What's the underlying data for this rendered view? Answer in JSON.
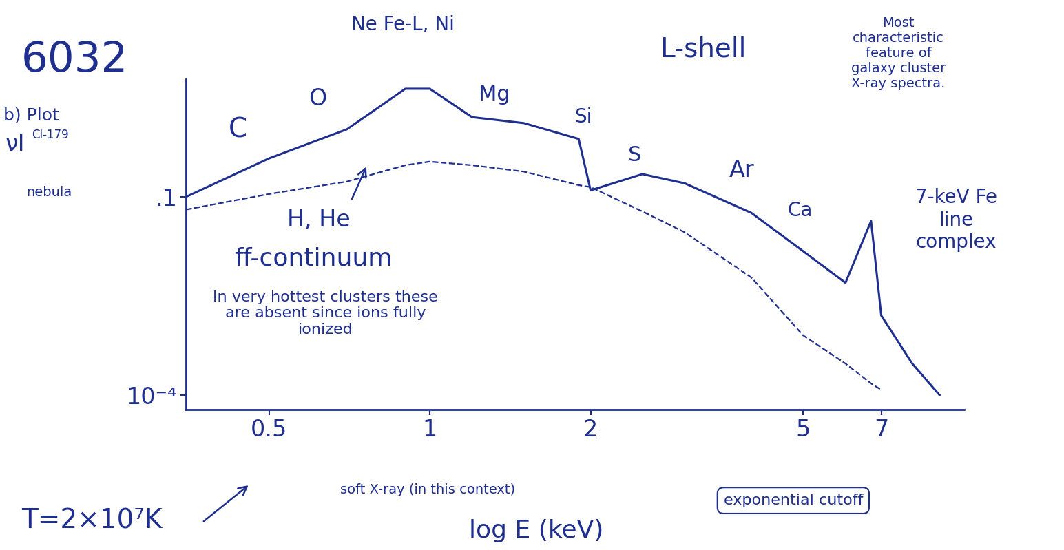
{
  "chart_data": {
    "type": "line",
    "x": [
      0.35,
      0.5,
      0.7,
      0.9,
      1.0,
      1.2,
      1.5,
      1.9,
      2.0,
      2.5,
      3,
      4,
      5,
      6,
      6.7,
      7,
      8,
      9
    ],
    "series": [
      {
        "color": "#1f2f8f",
        "line_style": "solid",
        "values": [
          0.1,
          0.38,
          1.05,
          4.3,
          4.3,
          1.6,
          1.3,
          0.75,
          0.125,
          0.22,
          0.16,
          0.057,
          0.015,
          0.005,
          0.043,
          0.0016,
          0.0003,
          0.0001
        ]
      },
      {
        "color": "#1f2f8f",
        "line_style": "dashed",
        "values": [
          0.064,
          0.11,
          0.17,
          0.3,
          0.34,
          0.3,
          0.24,
          0.15,
          0.14,
          0.06,
          0.029,
          0.006,
          0.0008,
          0.0003,
          0.00015,
          0.00012,
          null,
          null
        ]
      }
    ],
    "log": true,
    "xlim": [
      0.35,
      10
    ],
    "xticks": [
      0.5,
      1,
      2,
      5,
      7
    ],
    "ylim": [
      6e-05,
      6
    ],
    "yticks": [
      {
        "value": 0.1,
        "label": ".1"
      },
      {
        "value": 0.0001,
        "label": "10⁻⁴"
      }
    ],
    "x_label": "log E (keV)",
    "y_label": "νI",
    "color": "#1f2f8f",
    "annotations": [
      "6032",
      "b) Plot",
      "Cl-179",
      "nebula",
      "C",
      "O",
      "Ne Fe-L, Ni",
      "Mg",
      "Si",
      "S",
      "Ar",
      "Ca",
      "L-shell",
      "Most characteristic feature of galaxy cluster X-ray spectra.",
      "7-keV Fe line complex",
      "H, He",
      "ff-continuum",
      "In very hottest clusters these are absent since ions fully ionized",
      "soft X-ray (in this context)",
      "exponential cutoff",
      "T=2×10⁷K"
    ]
  }
}
